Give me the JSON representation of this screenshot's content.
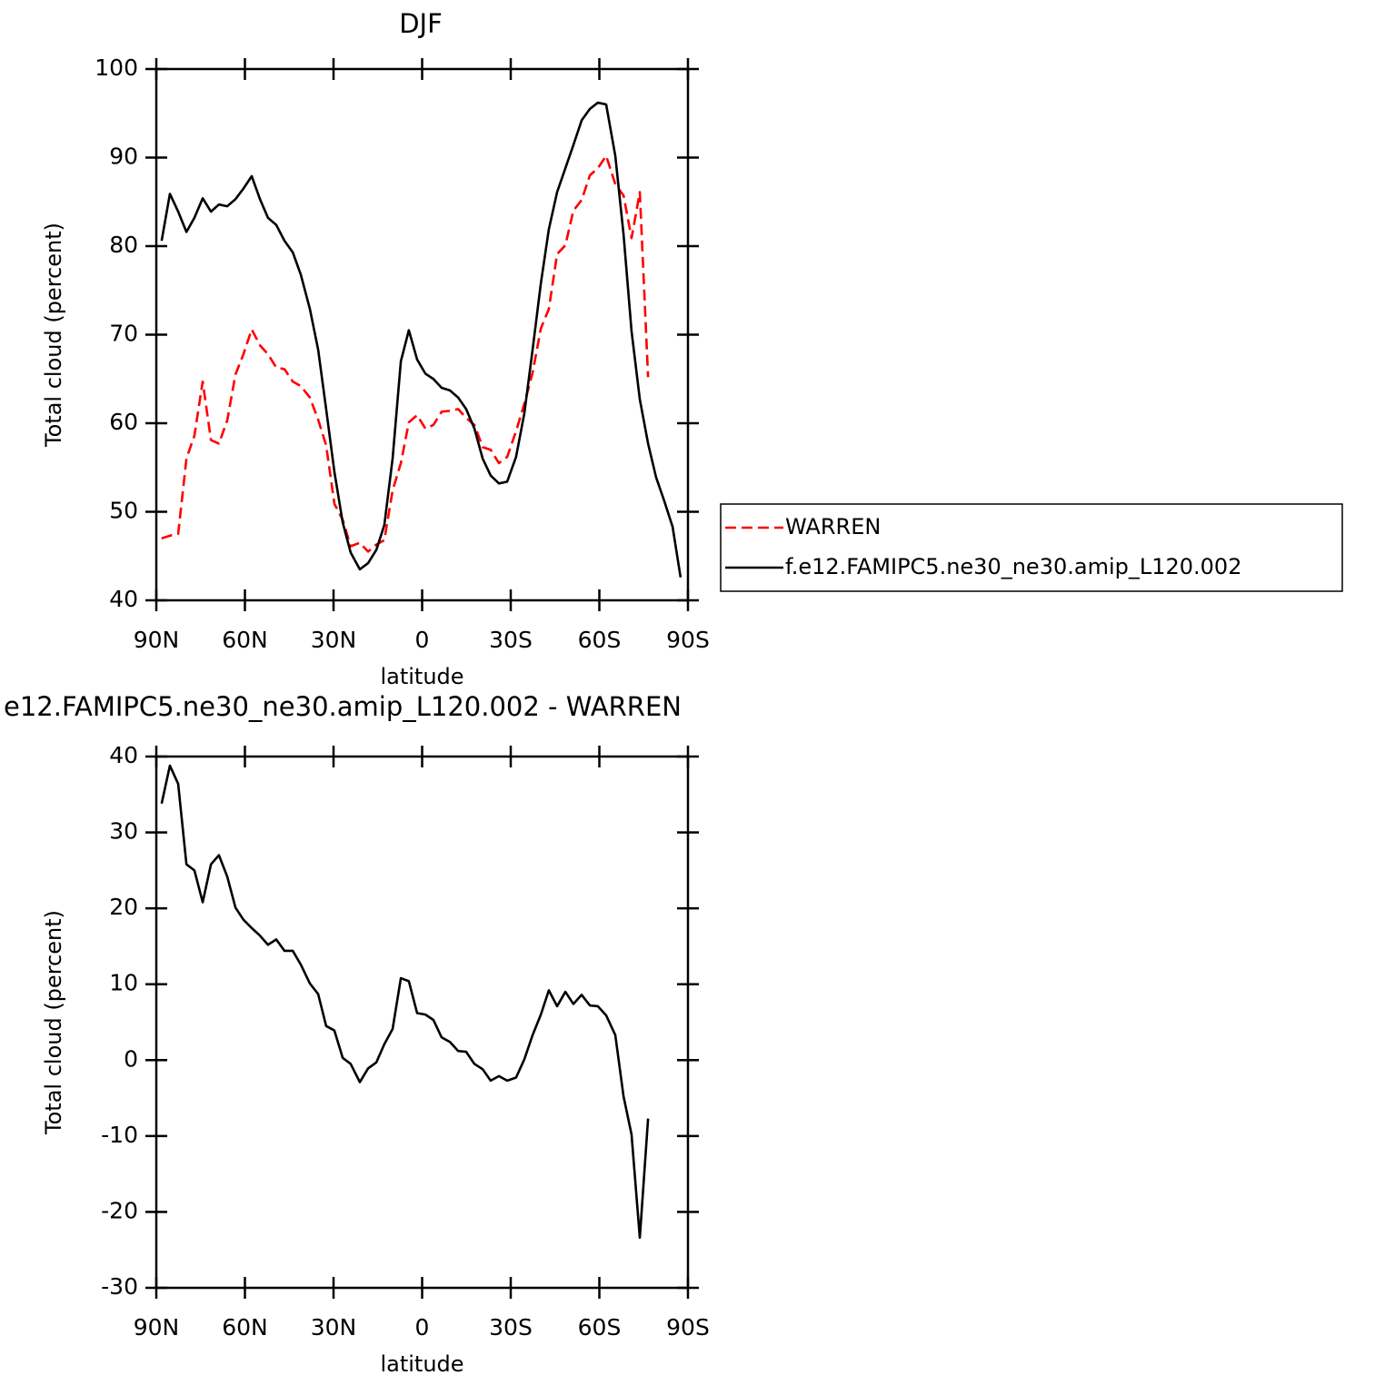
{
  "chart_data": [
    {
      "type": "line",
      "title": "DJF",
      "xlabel": "latitude",
      "ylabel": "Total cloud (percent)",
      "x": [
        88.2,
        85.4,
        82.6,
        79.8,
        77.1,
        74.3,
        71.5,
        68.8,
        66.0,
        63.2,
        60.5,
        57.7,
        54.9,
        52.2,
        49.4,
        46.6,
        43.8,
        41.1,
        38.0,
        35.2,
        32.5,
        29.7,
        26.9,
        24.2,
        21.1,
        18.3,
        15.5,
        12.8,
        10.0,
        7.2,
        4.5,
        1.7,
        -1.1,
        -3.8,
        -6.6,
        -9.4,
        -12.2,
        -14.9,
        -17.7,
        -20.5,
        -23.2,
        -26.0,
        -28.8,
        -31.8,
        -34.6,
        -37.4,
        -40.2,
        -42.9,
        -45.7,
        -48.5,
        -51.2,
        -54.0,
        -56.8,
        -59.5,
        -62.3,
        -65.4,
        -68.2,
        -70.9,
        -73.7,
        -76.5,
        -79.2,
        -82.0,
        -84.8,
        -87.5
      ],
      "xlim": [
        90,
        -90
      ],
      "xticks": [
        {
          "value": 90,
          "label": "90N"
        },
        {
          "value": 60,
          "label": "60N"
        },
        {
          "value": 30,
          "label": "30N"
        },
        0,
        {
          "value": -30,
          "label": "30S"
        },
        {
          "value": -60,
          "label": "60S"
        },
        {
          "value": -90,
          "label": "90S"
        }
      ],
      "ylim": [
        40,
        100
      ],
      "yticks": [
        40,
        50,
        60,
        70,
        80,
        90,
        100
      ],
      "legend": "right",
      "series": [
        {
          "name": "WARREN",
          "color": "#ff0000",
          "style": "dashed",
          "values": [
            47.0,
            47.3,
            47.5,
            56.0,
            58.6,
            64.7,
            58.1,
            57.7,
            60.3,
            65.5,
            67.8,
            70.6,
            68.8,
            67.8,
            66.3,
            66.1,
            64.7,
            64.2,
            62.9,
            60.4,
            57.5,
            50.9,
            49.1,
            46.1,
            46.5,
            45.5,
            46.3,
            46.8,
            52.4,
            55.5,
            60.1,
            60.9,
            59.4,
            59.8,
            61.3,
            61.4,
            61.6,
            60.6,
            59.8,
            57.3,
            57.0,
            55.5,
            56.2,
            59.1,
            62.2,
            65.7,
            70.7,
            72.9,
            79.1,
            80.1,
            84.0,
            85.2,
            88.0,
            88.8,
            90.2,
            87.0,
            85.7,
            80.9,
            86.1,
            65.2,
            null,
            null,
            null,
            null
          ]
        },
        {
          "name": "f.e12.FAMIPC5.ne30_ne30.amip_L120.002",
          "color": "#000000",
          "style": "solid",
          "values": [
            80.6,
            85.9,
            83.9,
            81.6,
            83.2,
            85.4,
            83.9,
            84.7,
            84.5,
            85.3,
            86.5,
            87.9,
            85.3,
            83.2,
            82.4,
            80.6,
            79.3,
            76.8,
            72.9,
            68.3,
            61.6,
            54.5,
            48.8,
            45.4,
            43.5,
            44.2,
            45.7,
            48.5,
            56.0,
            67.0,
            70.5,
            67.2,
            65.6,
            65.0,
            64.0,
            63.7,
            62.9,
            61.6,
            59.4,
            56.0,
            54.1,
            53.2,
            53.4,
            56.2,
            61.1,
            68.3,
            75.8,
            81.9,
            86.1,
            88.8,
            91.4,
            94.2,
            95.5,
            96.2,
            96.0,
            90.2,
            81.3,
            70.4,
            62.7,
            57.7,
            53.9,
            51.2,
            48.3,
            42.6
          ]
        }
      ]
    },
    {
      "type": "line",
      "title": "e12.FAMIPC5.ne30_ne30.amip_L120.002 - WARREN",
      "xlabel": "latitude",
      "ylabel": "Total cloud (percent)",
      "x": [
        88.2,
        85.4,
        82.6,
        79.8,
        77.1,
        74.3,
        71.5,
        68.8,
        66.0,
        63.2,
        60.5,
        57.7,
        54.9,
        52.2,
        49.4,
        46.6,
        43.8,
        41.1,
        38.0,
        35.2,
        32.5,
        29.7,
        26.9,
        24.2,
        21.1,
        18.3,
        15.5,
        12.8,
        10.0,
        7.2,
        4.5,
        1.7,
        -1.1,
        -3.8,
        -6.6,
        -9.4,
        -12.2,
        -14.9,
        -17.7,
        -20.5,
        -23.2,
        -26.0,
        -28.8,
        -31.8,
        -34.6,
        -37.4,
        -40.2,
        -42.9,
        -45.7,
        -48.5,
        -51.2,
        -54.0,
        -56.8,
        -59.5,
        -62.3,
        -65.4,
        -68.2,
        -70.9,
        -73.7,
        -76.5
      ],
      "xlim": [
        90,
        -90
      ],
      "xticks": [
        {
          "value": 90,
          "label": "90N"
        },
        {
          "value": 60,
          "label": "60N"
        },
        {
          "value": 30,
          "label": "30N"
        },
        0,
        {
          "value": -30,
          "label": "30S"
        },
        {
          "value": -60,
          "label": "60S"
        },
        {
          "value": -90,
          "label": "90S"
        }
      ],
      "ylim": [
        -30,
        40
      ],
      "yticks": [
        -30,
        -20,
        -10,
        0,
        10,
        20,
        30,
        40
      ],
      "color": "#000000",
      "values": [
        33.8,
        38.8,
        36.4,
        25.8,
        25.0,
        20.8,
        25.8,
        27.0,
        24.2,
        20.1,
        18.5,
        17.4,
        16.4,
        15.2,
        15.9,
        14.4,
        14.4,
        12.6,
        10.1,
        8.7,
        4.5,
        3.9,
        0.3,
        -0.5,
        -2.9,
        -1.1,
        -0.3,
        2.1,
        4.1,
        10.8,
        10.4,
        6.2,
        6.0,
        5.3,
        3.0,
        2.4,
        1.2,
        1.1,
        -0.5,
        -1.2,
        -2.7,
        -2.1,
        -2.7,
        -2.3,
        0.1,
        3.3,
        6.0,
        9.2,
        7.1,
        9.0,
        7.4,
        8.6,
        7.2,
        7.1,
        5.9,
        3.3,
        -4.8,
        -9.8,
        -23.4,
        -7.7
      ]
    }
  ]
}
